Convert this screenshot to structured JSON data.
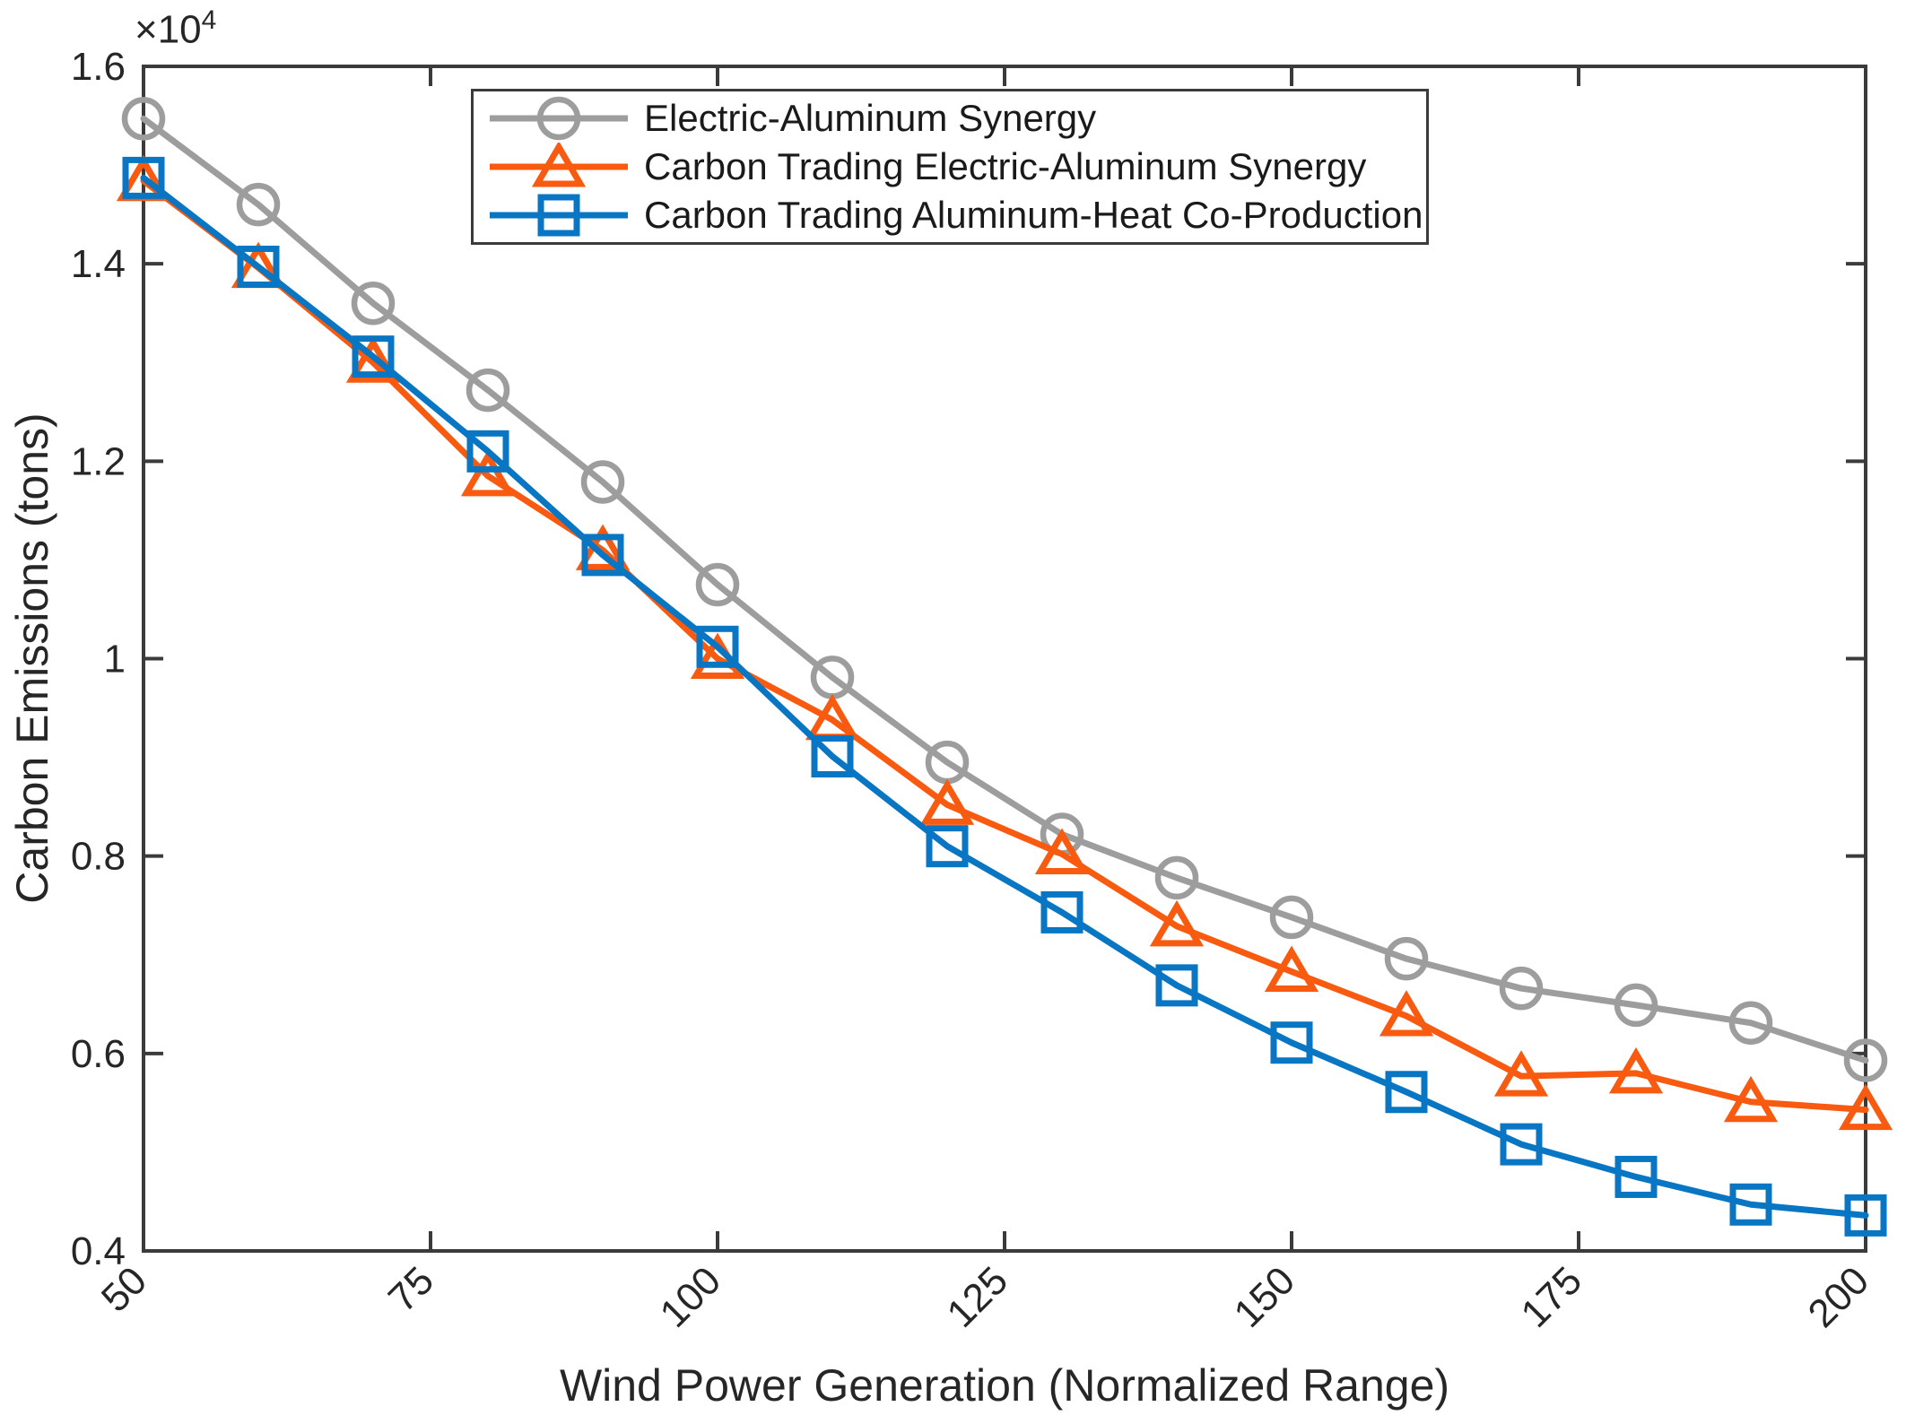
{
  "figure": {
    "background": "#ffffff",
    "axis_color": "#3b3b3b",
    "text_color": "#262626"
  },
  "chart_data": {
    "type": "line",
    "title": "",
    "xlabel": "Wind Power Generation (Normalized Range)",
    "ylabel": "Carbon Emissions (tons)",
    "y_axis_exponent": {
      "base": "×10",
      "power": "4"
    },
    "xlim": [
      50,
      200
    ],
    "ylim": [
      4000,
      16000
    ],
    "grid": false,
    "legend_position": "inside-top",
    "xticks": {
      "values": [
        50,
        75,
        100,
        125,
        150,
        175,
        200
      ],
      "labels": [
        "50",
        "75",
        "100",
        "125",
        "150",
        "175",
        "200"
      ],
      "rotation_deg": 45
    },
    "yticks": {
      "values": [
        4000,
        6000,
        8000,
        10000,
        12000,
        14000,
        16000
      ],
      "labels": [
        "0.4",
        "0.6",
        "0.8",
        "1",
        "1.2",
        "1.4",
        "1.6"
      ]
    },
    "x": [
      50,
      60,
      70,
      80,
      90,
      100,
      110,
      120,
      130,
      140,
      150,
      160,
      170,
      180,
      190,
      200
    ],
    "series": [
      {
        "name": "Electric-Aluminum Synergy",
        "color": "#9d9d9d",
        "marker": "circle",
        "values": [
          15470,
          14600,
          13600,
          12720,
          11790,
          10750,
          9810,
          8950,
          8220,
          7780,
          7380,
          6960,
          6660,
          6490,
          6310,
          5930
        ]
      },
      {
        "name": "Carbon Trading Electric-Aluminum Synergy",
        "color": "#f85a10",
        "marker": "triangle",
        "values": [
          14840,
          13960,
          13000,
          11850,
          11100,
          10000,
          9380,
          8520,
          8020,
          7290,
          6830,
          6380,
          5770,
          5800,
          5510,
          5430
        ]
      },
      {
        "name": "Carbon Trading Aluminum-Heat Co-Production",
        "color": "#0876c2",
        "marker": "square",
        "values": [
          14870,
          13970,
          13060,
          12100,
          11050,
          10120,
          9010,
          8100,
          7430,
          6690,
          6110,
          5610,
          5080,
          4750,
          4470,
          4360
        ]
      }
    ]
  }
}
